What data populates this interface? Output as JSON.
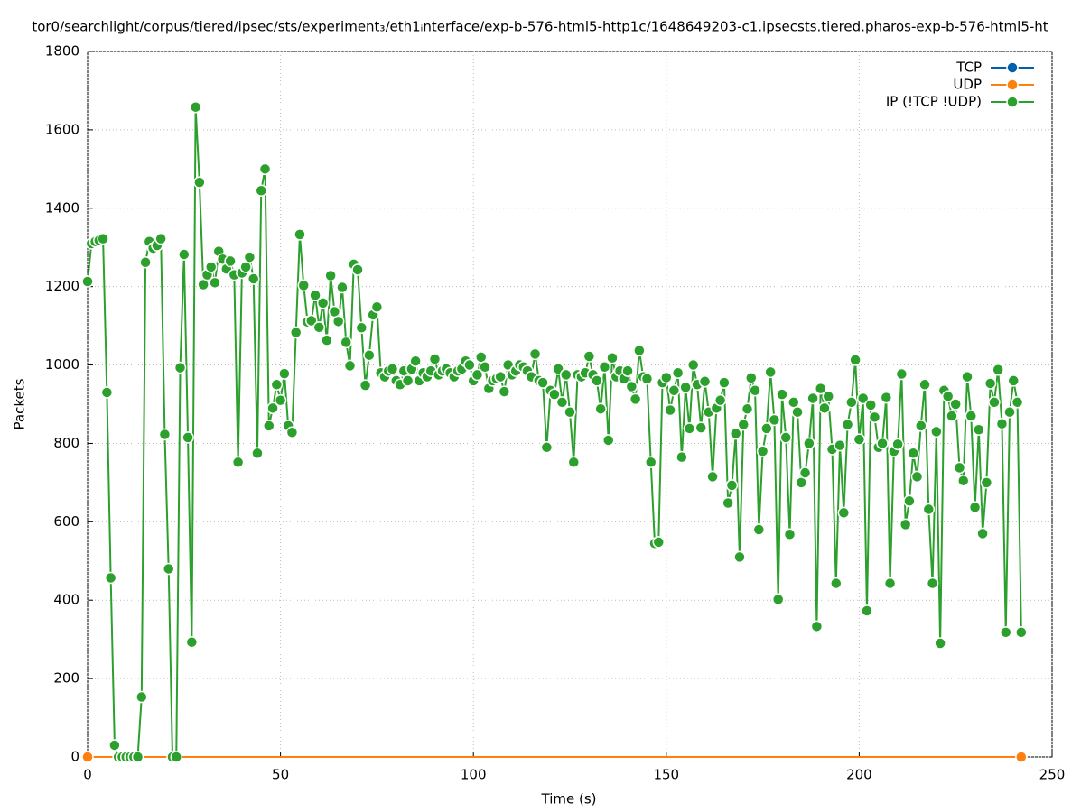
{
  "chart_data": {
    "type": "line",
    "title": "tor0/searchlight/corpus/tiered/ipsec/sts/experiment₃/eth1ᵢnterface/exp-b-576-html5-http1c/1648649203-c1.ipsecsts.tiered.pharos-exp-b-576-html5-ht",
    "x_label": "Time (s)",
    "y_label": "Packets",
    "xlim": [
      0,
      250
    ],
    "xticks": [
      0,
      50,
      100,
      150,
      200,
      250
    ],
    "ylim": [
      0,
      1800
    ],
    "yticks": [
      0,
      200,
      400,
      600,
      800,
      1000,
      1200,
      1400,
      1600,
      1800
    ],
    "grid": true,
    "legend": "top-right",
    "series": [
      {
        "name": "TCP",
        "color": "#0060ad",
        "x": [
          0,
          242
        ],
        "values": [
          0,
          0
        ]
      },
      {
        "name": "UDP",
        "color": "#ff7f0e",
        "x": [
          0,
          242
        ],
        "values": [
          0,
          0
        ]
      },
      {
        "name": "IP (!TCP  !UDP)",
        "color": "#2ca02c",
        "x": [
          0,
          1,
          2,
          3,
          4,
          5,
          6,
          7,
          8,
          9,
          10,
          11,
          12,
          13,
          14,
          15,
          16,
          17,
          18,
          19,
          20,
          21,
          22,
          23,
          24,
          25,
          26,
          27,
          28,
          29,
          30,
          31,
          32,
          33,
          34,
          35,
          36,
          37,
          38,
          39,
          40,
          41,
          42,
          43,
          44,
          45,
          46,
          47,
          48,
          49,
          50,
          51,
          52,
          53,
          54,
          55,
          56,
          57,
          58,
          59,
          60,
          61,
          62,
          63,
          64,
          65,
          66,
          67,
          68,
          69,
          70,
          71,
          72,
          73,
          74,
          75,
          76,
          77,
          78,
          79,
          80,
          81,
          82,
          83,
          84,
          85,
          86,
          87,
          88,
          89,
          90,
          91,
          92,
          93,
          94,
          95,
          96,
          97,
          98,
          99,
          100,
          101,
          102,
          103,
          104,
          105,
          106,
          107,
          108,
          109,
          110,
          111,
          112,
          113,
          114,
          115,
          116,
          117,
          118,
          119,
          120,
          121,
          122,
          123,
          124,
          125,
          126,
          127,
          128,
          129,
          130,
          131,
          132,
          133,
          134,
          135,
          136,
          137,
          138,
          139,
          140,
          141,
          142,
          143,
          144,
          145,
          146,
          147,
          148,
          149,
          150,
          151,
          152,
          153,
          154,
          155,
          156,
          157,
          158,
          159,
          160,
          161,
          162,
          163,
          164,
          165,
          166,
          167,
          168,
          169,
          170,
          171,
          172,
          173,
          174,
          175,
          176,
          177,
          178,
          179,
          180,
          181,
          182,
          183,
          184,
          185,
          186,
          187,
          188,
          189,
          190,
          191,
          192,
          193,
          194,
          195,
          196,
          197,
          198,
          199,
          200,
          201,
          202,
          203,
          204,
          205,
          206,
          207,
          208,
          209,
          210,
          211,
          212,
          213,
          214,
          215,
          216,
          217,
          218,
          219,
          220,
          221,
          222,
          223,
          224,
          225,
          226,
          227,
          228,
          229,
          230,
          231,
          232,
          233,
          234,
          235,
          236,
          237,
          238,
          239,
          240,
          241,
          242
        ],
        "values": [
          1213,
          1310,
          1315,
          1318,
          1322,
          930,
          457,
          30,
          0,
          0,
          0,
          0,
          0,
          0,
          153,
          1262,
          1315,
          1298,
          1305,
          1322,
          823,
          480,
          0,
          0,
          993,
          1282,
          815,
          293,
          1658,
          1466,
          1205,
          1230,
          1250,
          1210,
          1290,
          1270,
          1245,
          1265,
          1230,
          752,
          1235,
          1250,
          1275,
          1220,
          775,
          1445,
          1500,
          845,
          890,
          950,
          910,
          978,
          845,
          828,
          1083,
          1333,
          1203,
          1110,
          1113,
          1178,
          1096,
          1158,
          1063,
          1228,
          1136,
          1111,
          1198,
          1058,
          998,
          1257,
          1243,
          1095,
          948,
          1025,
          1128,
          1148,
          980,
          970,
          985,
          990,
          960,
          950,
          985,
          960,
          990,
          1010,
          960,
          980,
          970,
          985,
          1015,
          975,
          985,
          990,
          980,
          970,
          985,
          990,
          1010,
          1000,
          960,
          975,
          1020,
          995,
          940,
          960,
          965,
          970,
          932,
          1000,
          975,
          985,
          1000,
          995,
          985,
          970,
          1028,
          960,
          955,
          790,
          935,
          925,
          990,
          905,
          975,
          880,
          752,
          975,
          970,
          980,
          1022,
          975,
          960,
          888,
          995,
          808,
          1018,
          970,
          985,
          965,
          985,
          945,
          913,
          1037,
          970,
          965,
          752,
          545,
          548,
          955,
          968,
          885,
          935,
          980,
          765,
          943,
          838,
          1000,
          950,
          840,
          958,
          880,
          715,
          890,
          910,
          955,
          648,
          693,
          825,
          510,
          848,
          888,
          967,
          935,
          580,
          780,
          838,
          982,
          860,
          402,
          925,
          815,
          568,
          905,
          880,
          700,
          725,
          800,
          915,
          333,
          940,
          890,
          920,
          785,
          443,
          795,
          623,
          848,
          905,
          1013,
          810,
          915,
          373,
          898,
          867,
          790,
          800,
          917,
          443,
          780,
          798,
          977,
          593,
          653,
          775,
          715,
          845,
          950,
          632,
          443,
          830,
          290,
          935,
          920,
          870,
          900,
          738,
          705,
          970,
          870,
          637,
          835,
          570,
          700,
          953,
          905,
          988,
          850,
          318,
          880,
          960,
          905,
          318
        ]
      }
    ]
  }
}
